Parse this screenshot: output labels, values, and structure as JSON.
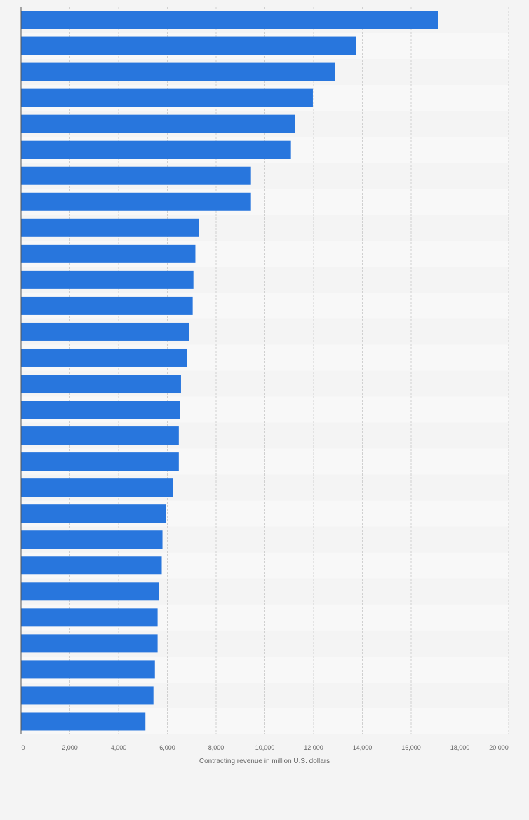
{
  "chart_data": {
    "type": "bar",
    "orientation": "horizontal",
    "xlabel": "Contracting revenue in million U.S. dollars",
    "xlim": [
      0,
      20000
    ],
    "x_ticks": [
      0,
      2000,
      4000,
      6000,
      8000,
      10000,
      12000,
      14000,
      16000,
      18000,
      20000
    ],
    "x_tick_labels": [
      "0",
      "2,000",
      "4,000",
      "6,000",
      "8,000",
      "10,000",
      "12,000",
      "14,000",
      "16,000",
      "18,000",
      "20,000"
    ],
    "grid": true,
    "bar_color": "#2876dd",
    "values": [
      17100,
      13730,
      12870,
      11970,
      11250,
      11070,
      9430,
      9430,
      7300,
      7150,
      7070,
      7040,
      6900,
      6810,
      6560,
      6520,
      6470,
      6470,
      6230,
      5950,
      5800,
      5770,
      5660,
      5600,
      5600,
      5490,
      5430,
      5100
    ]
  }
}
